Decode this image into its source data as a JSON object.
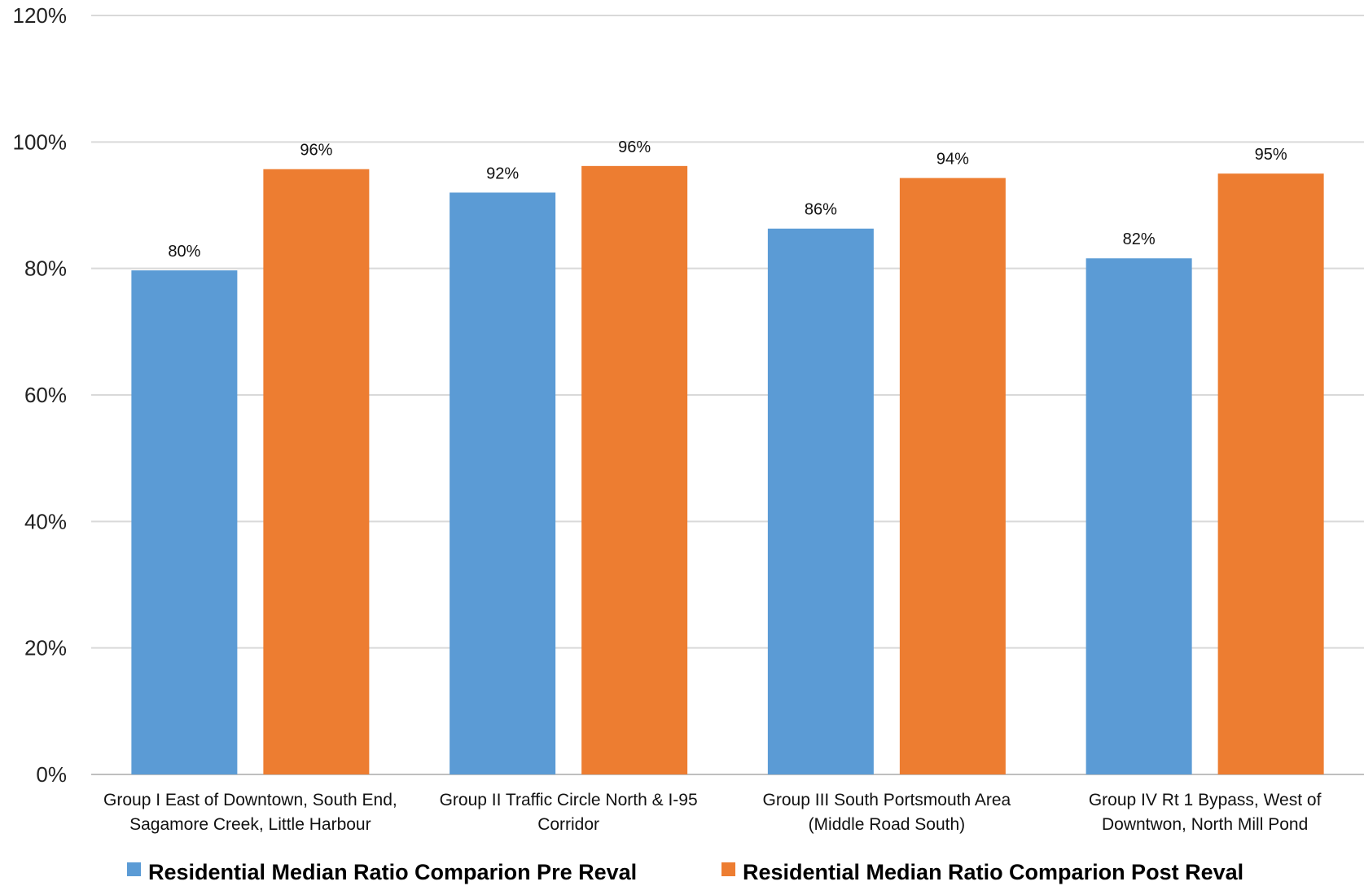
{
  "chart_data": {
    "type": "bar",
    "title": "",
    "xlabel": "",
    "ylabel": "",
    "ylim": [
      0,
      120
    ],
    "yticks": [
      "0%",
      "20%",
      "40%",
      "60%",
      "80%",
      "100%",
      "120%"
    ],
    "grid": true,
    "legend": "bottom",
    "categories": [
      [
        "Group I East of Downtown, South End,",
        "Sagamore Creek, Little Harbour"
      ],
      [
        "Group II Traffic Circle North & I-95",
        "Corridor"
      ],
      [
        "Group III South Portsmouth Area",
        "(Middle Road South)"
      ],
      [
        "Group IV Rt 1 Bypass, West of",
        "Downtwon, North Mill Pond"
      ]
    ],
    "series": [
      {
        "name": "Residential Median Ratio Comparion  Pre Reval",
        "color": "#5B9BD5",
        "values": [
          79.7,
          92,
          86.3,
          81.6
        ],
        "labels": [
          "80%",
          "92%",
          "86%",
          "82%"
        ]
      },
      {
        "name": "Residential Median Ratio Comparion  Post Reval",
        "color": "#ED7D31",
        "values": [
          95.7,
          96.2,
          94.3,
          95
        ],
        "labels": [
          "96%",
          "96%",
          "94%",
          "95%"
        ]
      }
    ]
  }
}
